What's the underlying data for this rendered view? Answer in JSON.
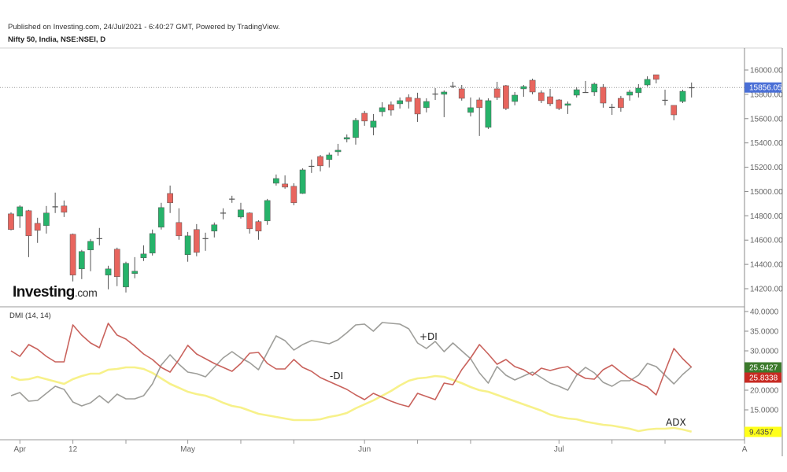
{
  "header": {
    "published": "Published on Investing.com, 24/Jul/2021 - 6:40:27 GMT, Powered by TradingView.",
    "symbol": "Nifty 50, India, NSE:NSEI, D"
  },
  "logo": {
    "brand": "Investing",
    "suffix": ".com"
  },
  "colors": {
    "up": "#26b36a",
    "down": "#e8655e",
    "plus_di": "#9e9e9a",
    "minus_di": "#c9625c",
    "adx": "#f7f18a",
    "last_price": "#4a6fd6"
  },
  "chart_data": [
    {
      "type": "candlestick",
      "title": "Nifty 50, India, NSE:NSEI, D",
      "ylim": [
        14100,
        16150
      ],
      "y_ticks": [
        "16000.00",
        "15800.00",
        "15600.00",
        "15400.00",
        "15200.00",
        "15000.00",
        "14800.00",
        "14600.00",
        "14400.00",
        "14200.00"
      ],
      "y_tick_values": [
        16000,
        15800,
        15600,
        15400,
        15200,
        15000,
        14800,
        14600,
        14400,
        14200
      ],
      "last_price_label": "15856.05",
      "last_price": 15856.05,
      "x_ticks": [
        {
          "label": "Apr",
          "bar": 1
        },
        {
          "label": "12",
          "bar": 7
        },
        {
          "label": "",
          "bar": 13
        },
        {
          "label": "May",
          "bar": 20
        },
        {
          "label": "",
          "bar": 26
        },
        {
          "label": "",
          "bar": 32
        },
        {
          "label": "Jun",
          "bar": 40
        },
        {
          "label": "",
          "bar": 46
        },
        {
          "label": "",
          "bar": 52
        },
        {
          "label": "Jul",
          "bar": 62
        },
        {
          "label": "",
          "bar": 68
        },
        {
          "label": "",
          "bar": 74
        },
        {
          "label": "A",
          "bar": 83
        }
      ],
      "ohlc": [
        [
          14816,
          14829,
          14680,
          14687
        ],
        [
          14797,
          14887,
          14700,
          14874
        ],
        [
          14842,
          14849,
          14460,
          14635
        ],
        [
          14738,
          14784,
          14577,
          14680
        ],
        [
          14719,
          14881,
          14654,
          14823
        ],
        [
          14870,
          14991,
          14823,
          14878
        ],
        [
          14881,
          14926,
          14790,
          14829
        ],
        [
          14648,
          14654,
          14260,
          14312
        ],
        [
          14363,
          14519,
          14279,
          14506
        ],
        [
          14519,
          14609,
          14344,
          14590
        ],
        [
          14610,
          14700,
          14557,
          14616
        ],
        [
          14312,
          14389,
          14195,
          14363
        ],
        [
          14525,
          14538,
          14221,
          14299
        ],
        [
          14214,
          14422,
          14169,
          14409
        ],
        [
          14325,
          14460,
          14286,
          14344
        ],
        [
          14454,
          14557,
          14428,
          14486
        ],
        [
          14493,
          14687,
          14473,
          14654
        ],
        [
          14706,
          14907,
          14687,
          14868
        ],
        [
          14984,
          15049,
          14823,
          14907
        ],
        [
          14745,
          14862,
          14603,
          14635
        ],
        [
          14480,
          14667,
          14422,
          14635
        ],
        [
          14687,
          14732,
          14467,
          14499
        ],
        [
          14609,
          14661,
          14512,
          14616
        ],
        [
          14674,
          14745,
          14622,
          14726
        ],
        [
          14820,
          14862,
          14771,
          14826
        ],
        [
          14935,
          14965,
          14907,
          14941
        ],
        [
          14790,
          14907,
          14777,
          14849
        ],
        [
          14823,
          14829,
          14654,
          14693
        ],
        [
          14752,
          14764,
          14603,
          14674
        ],
        [
          14758,
          14939,
          14726,
          14926
        ],
        [
          15068,
          15140,
          15049,
          15107
        ],
        [
          15062,
          15133,
          15023,
          15036
        ],
        [
          15043,
          15068,
          14887,
          14907
        ],
        [
          14984,
          15191,
          14980,
          15178
        ],
        [
          15211,
          15263,
          15153,
          15204
        ],
        [
          15288,
          15301,
          15166,
          15211
        ],
        [
          15263,
          15321,
          15198,
          15301
        ],
        [
          15327,
          15392,
          15295,
          15340
        ],
        [
          15431,
          15470,
          15405,
          15444
        ],
        [
          15444,
          15605,
          15386,
          15586
        ],
        [
          15644,
          15664,
          15541,
          15580
        ],
        [
          15528,
          15638,
          15463,
          15580
        ],
        [
          15657,
          15735,
          15618,
          15690
        ],
        [
          15715,
          15741,
          15625,
          15670
        ],
        [
          15722,
          15774,
          15683,
          15748
        ],
        [
          15774,
          15800,
          15683,
          15741
        ],
        [
          15767,
          15813,
          15573,
          15638
        ],
        [
          15690,
          15767,
          15651,
          15741
        ],
        [
          15803,
          15851,
          15754,
          15806
        ],
        [
          15800,
          15832,
          15612,
          15819
        ],
        [
          15868,
          15903,
          15851,
          15871
        ],
        [
          15845,
          15877,
          15748,
          15767
        ],
        [
          15651,
          15774,
          15618,
          15690
        ],
        [
          15754,
          15774,
          15457,
          15690
        ],
        [
          15528,
          15767,
          15515,
          15748
        ],
        [
          15845,
          15903,
          15754,
          15774
        ],
        [
          15871,
          15877,
          15670,
          15683
        ],
        [
          15741,
          15819,
          15709,
          15793
        ],
        [
          15845,
          15877,
          15780,
          15864
        ],
        [
          15916,
          15929,
          15800,
          15819
        ],
        [
          15813,
          15832,
          15728,
          15748
        ],
        [
          15780,
          15845,
          15703,
          15722
        ],
        [
          15754,
          15761,
          15670,
          15683
        ],
        [
          15709,
          15741,
          15638,
          15722
        ],
        [
          15793,
          15858,
          15774,
          15838
        ],
        [
          15816,
          15910,
          15813,
          15819
        ],
        [
          15819,
          15897,
          15787,
          15884
        ],
        [
          15858,
          15884,
          15690,
          15728
        ],
        [
          15696,
          15722,
          15631,
          15697
        ],
        [
          15767,
          15787,
          15657,
          15690
        ],
        [
          15793,
          15838,
          15748,
          15819
        ],
        [
          15813,
          15884,
          15774,
          15851
        ],
        [
          15877,
          15948,
          15864,
          15923
        ],
        [
          15961,
          15961,
          15890,
          15923
        ],
        [
          15754,
          15838,
          15709,
          15755
        ],
        [
          15709,
          15709,
          15586,
          15631
        ],
        [
          15741,
          15838,
          15728,
          15825
        ],
        [
          15858,
          15897,
          15774,
          15856.05
        ]
      ]
    },
    {
      "type": "line",
      "title": "DMI (14, 14)",
      "ylim": [
        8,
        42
      ],
      "y_ticks": [
        "40.0000",
        "35.0000",
        "30.0000",
        "20.0000",
        "15.0000"
      ],
      "y_tick_values": [
        40,
        35,
        30,
        20,
        15
      ],
      "series": [
        {
          "name": "+DI",
          "label": "+DI",
          "last_label": "25.9427",
          "values": [
            18.6,
            19.4,
            17.2,
            17.4,
            19.2,
            21.0,
            20.2,
            17.0,
            16.0,
            16.8,
            18.6,
            16.8,
            19.0,
            17.8,
            17.8,
            18.6,
            21.6,
            26.4,
            29.0,
            26.6,
            24.6,
            24.2,
            23.4,
            25.8,
            28.2,
            29.8,
            28.2,
            27.0,
            25.2,
            29.6,
            33.8,
            32.6,
            30.2,
            31.6,
            32.6,
            32.2,
            31.8,
            32.8,
            34.6,
            36.6,
            36.8,
            35.0,
            37.2,
            37.0,
            36.8,
            35.6,
            32.0,
            30.6,
            32.4,
            29.8,
            32.0,
            30.0,
            28.0,
            24.4,
            21.8,
            26.0,
            23.8,
            22.6,
            23.6,
            24.6,
            23.2,
            21.8,
            21.0,
            20.0,
            23.8,
            25.8,
            24.4,
            22.0,
            21.0,
            22.4,
            22.4,
            23.8,
            26.8,
            26.0,
            23.8,
            21.6,
            24.0,
            25.9427
          ]
        },
        {
          "name": "-DI",
          "label": "-DI",
          "last_label": "25.8338",
          "values": [
            30.0,
            28.6,
            31.6,
            30.4,
            28.6,
            27.2,
            27.2,
            36.6,
            34.0,
            32.0,
            30.8,
            37.0,
            34.0,
            33.0,
            31.2,
            29.2,
            27.8,
            25.8,
            24.6,
            27.8,
            31.4,
            29.2,
            28.0,
            26.8,
            25.8,
            24.8,
            26.8,
            29.4,
            29.6,
            26.8,
            25.4,
            25.4,
            27.8,
            25.8,
            24.8,
            23.2,
            22.2,
            21.2,
            20.2,
            18.8,
            17.6,
            19.2,
            18.2,
            17.2,
            16.4,
            15.8,
            19.2,
            18.4,
            17.6,
            21.8,
            21.4,
            25.2,
            28.2,
            31.6,
            29.2,
            26.6,
            27.8,
            26.0,
            25.2,
            23.8,
            25.6,
            25.0,
            25.6,
            26.0,
            24.2,
            23.0,
            22.8,
            25.2,
            26.4,
            24.6,
            23.0,
            21.8,
            20.8,
            18.8,
            24.8,
            30.6,
            28.0,
            25.8338
          ]
        },
        {
          "name": "ADX",
          "label": "ADX",
          "last_label": "9.4357",
          "values": [
            23.4,
            22.6,
            22.8,
            23.4,
            22.8,
            22.2,
            21.6,
            22.8,
            23.6,
            24.2,
            24.2,
            25.2,
            25.4,
            25.8,
            25.8,
            25.4,
            24.4,
            23.0,
            21.6,
            20.6,
            19.6,
            19.0,
            18.6,
            17.8,
            16.8,
            16.0,
            15.6,
            14.8,
            14.0,
            13.6,
            13.2,
            12.8,
            12.4,
            12.4,
            12.4,
            12.6,
            13.2,
            13.6,
            14.2,
            15.4,
            16.4,
            17.4,
            18.6,
            19.8,
            21.2,
            22.4,
            23.0,
            23.2,
            23.6,
            23.4,
            22.6,
            21.8,
            20.8,
            20.0,
            19.6,
            18.8,
            18.0,
            17.2,
            16.4,
            15.6,
            14.8,
            13.8,
            13.2,
            12.8,
            12.6,
            12.0,
            11.6,
            11.2,
            11.0,
            10.6,
            10.2,
            9.6,
            10.0,
            10.2,
            10.2,
            10.4,
            10.0,
            9.4357
          ]
        }
      ]
    }
  ]
}
